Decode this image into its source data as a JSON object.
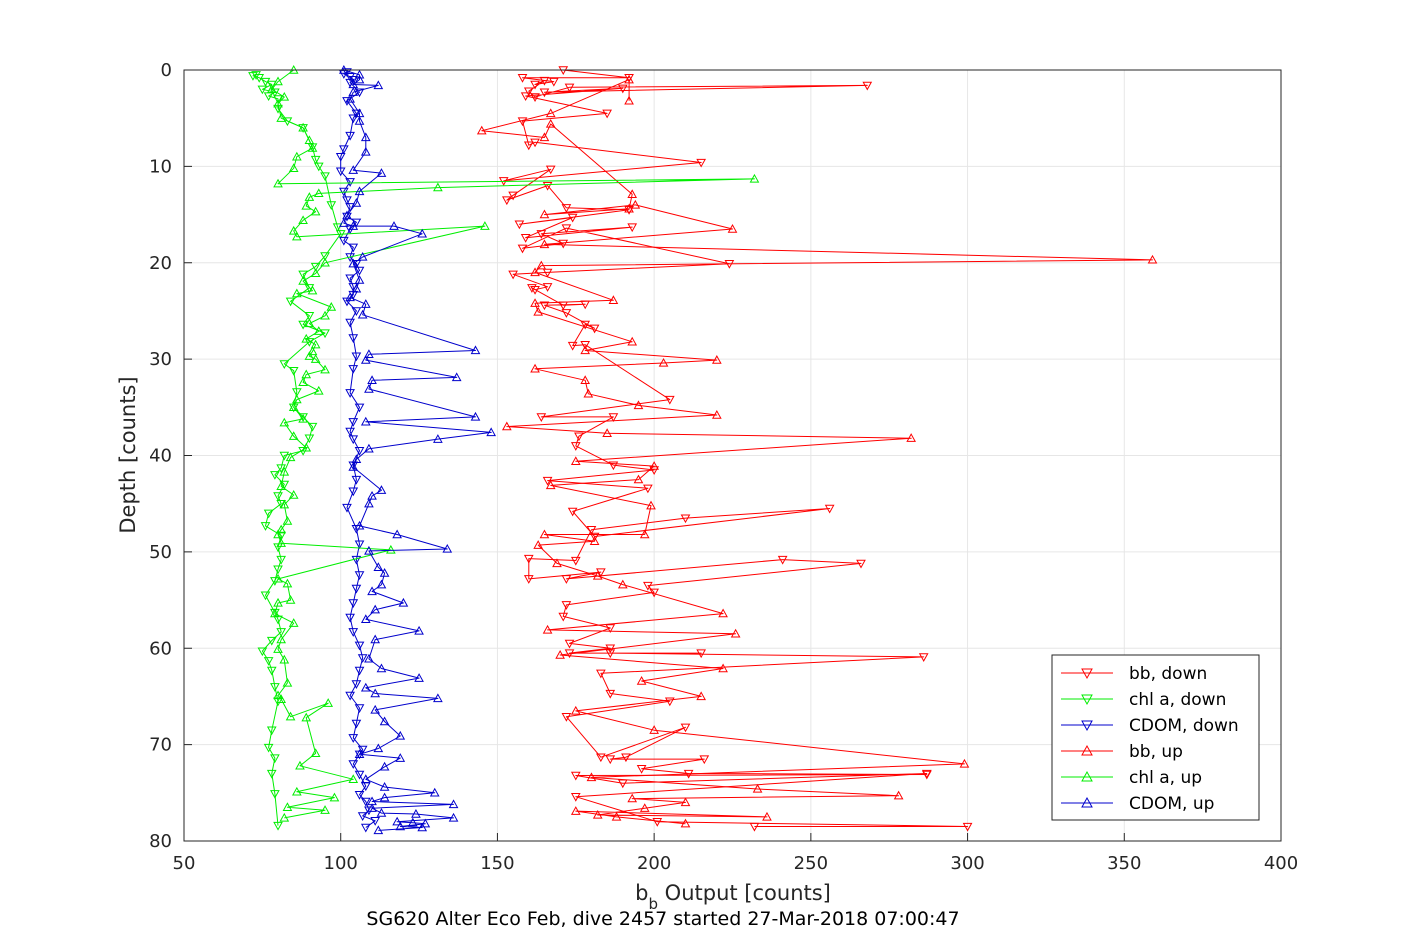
{
  "chart_data": {
    "type": "line",
    "caption": "SG620 Alter Eco Feb, dive 2457 started 27-Mar-2018 07:00:47",
    "xlabel_base": "b",
    "xlabel_sub": "b",
    "xlabel_rest": " Output [counts]",
    "ylabel": "Depth [counts]",
    "xlim": [
      50,
      400
    ],
    "ylim": [
      0,
      80
    ],
    "y_reversed": true,
    "grid": true,
    "legend_placement": "bottom-right",
    "x_ticks": [
      "50",
      "100",
      "150",
      "200",
      "250",
      "300",
      "350",
      "400"
    ],
    "y_ticks": [
      "0",
      "10",
      "20",
      "30",
      "40",
      "50",
      "60",
      "70",
      "80"
    ],
    "series": [
      {
        "name": "bb, down",
        "color": "#ff0000",
        "marker": "triangle-down",
        "x": [
          171,
          192,
          158,
          168,
          162,
          165,
          160,
          162,
          173,
          268,
          165,
          190,
          159,
          185,
          158,
          160,
          162,
          215,
          152,
          167,
          155,
          153,
          166,
          172,
          192,
          157,
          174,
          159,
          193,
          164,
          171,
          158,
          172,
          224,
          166,
          155,
          166,
          162,
          161,
          171,
          178,
          165,
          172,
          181,
          178,
          174,
          178,
          205,
          164,
          187,
          176,
          175,
          187,
          200,
          166,
          198,
          174,
          181,
          256,
          210,
          180,
          175,
          160,
          160,
          183,
          172,
          241,
          266,
          198,
          200,
          172,
          171,
          186,
          173,
          186,
          173,
          215,
          186,
          286,
          183,
          186,
          205,
          172,
          183,
          210,
          191,
          186,
          216,
          196,
          211,
          287,
          175,
          190,
          287,
          175,
          201,
          300,
          232
        ],
        "y": [
          0,
          0.8,
          0.8,
          1.2,
          1.5,
          1.1,
          2.2,
          2.8,
          1.8,
          1.6,
          2.3,
          1.9,
          2.7,
          4.5,
          5.3,
          7.8,
          7.5,
          9.6,
          11.5,
          10.3,
          13.0,
          13.5,
          12.0,
          14.3,
          14.5,
          16.0,
          15.3,
          17.4,
          16.3,
          17.0,
          18.0,
          18.5,
          16.4,
          20.1,
          21.0,
          21.2,
          22.5,
          22.8,
          22.6,
          24.4,
          24.3,
          24.4,
          25.2,
          26.8,
          26.4,
          28.6,
          28.5,
          34.2,
          36.0,
          36.0,
          38.0,
          39.0,
          41.0,
          41.5,
          42.6,
          43.4,
          45.8,
          48.4,
          45.5,
          46.5,
          47.7,
          50.9,
          50.7,
          52.8,
          52.1,
          52.8,
          50.8,
          51.2,
          53.5,
          54.2,
          55.5,
          56.7,
          57.9,
          59.5,
          60.0,
          60.5,
          60.5,
          60.5,
          60.9,
          62.6,
          64.7,
          65.5,
          67.1,
          71.3,
          68.2,
          71.3,
          71.5,
          71.5,
          72.5,
          73.0,
          73.1,
          73.2,
          74.0,
          73.0,
          75.4,
          78.0,
          78.5,
          78.5
        ]
      },
      {
        "name": "chl a, down",
        "color": "#00ee00",
        "marker": "triangle-down",
        "x": [
          73,
          72,
          74,
          76,
          78,
          75,
          79,
          77,
          80,
          80,
          83,
          88,
          91,
          92,
          93,
          95,
          97,
          99,
          100,
          95,
          92,
          88,
          90,
          84,
          90,
          88,
          95,
          90,
          82,
          85,
          86,
          85,
          88,
          91,
          90,
          88,
          82,
          81,
          79,
          82,
          80,
          81,
          77,
          76,
          81,
          80,
          81,
          80,
          79,
          76,
          79,
          80,
          81,
          78,
          75,
          77,
          78,
          79,
          80,
          78,
          77,
          79,
          78,
          79,
          80
        ],
        "y": [
          0.5,
          0.6,
          0.8,
          1.2,
          1.5,
          2.0,
          2.3,
          2.7,
          3.0,
          4.0,
          5.3,
          6.0,
          8.0,
          9.3,
          10.0,
          11.0,
          14.0,
          16.3,
          17.0,
          19.3,
          20.4,
          21.2,
          22.6,
          24.0,
          25.5,
          26.4,
          27.3,
          28.2,
          30.5,
          31.2,
          33.4,
          35.0,
          36.0,
          37.0,
          38.2,
          39.5,
          40.0,
          41.3,
          42.0,
          43.0,
          44.2,
          45.0,
          46.0,
          47.3,
          48.3,
          49.5,
          50.8,
          51.8,
          53.0,
          54.5,
          56.3,
          57.0,
          58.3,
          59.2,
          60.3,
          61.3,
          62.3,
          64.0,
          65.5,
          68.5,
          70.3,
          71.4,
          73.0,
          75.1,
          78.4
        ]
      },
      {
        "name": "CDOM, down",
        "color": "#0000cc",
        "marker": "triangle-down",
        "x": [
          102,
          101,
          103,
          104,
          103,
          106,
          102,
          105,
          104,
          103,
          101,
          100,
          100,
          103,
          101,
          102,
          103,
          102,
          105,
          103,
          101,
          104,
          103,
          105,
          106,
          103,
          104,
          104,
          102,
          105,
          103,
          104,
          105,
          104,
          103,
          106,
          104,
          103,
          104,
          106,
          104,
          105,
          104,
          102,
          105,
          106,
          105,
          106,
          105,
          104,
          103,
          104,
          106,
          107,
          106,
          105,
          103,
          106,
          105,
          104,
          107,
          106,
          104,
          106,
          108,
          106,
          108,
          109,
          107,
          111,
          108
        ],
        "y": [
          0.2,
          0.4,
          0.7,
          1.0,
          1.3,
          2.3,
          3.2,
          4.5,
          5.0,
          6.8,
          8.2,
          9.0,
          10.5,
          11.6,
          12.6,
          13.5,
          14.2,
          15.2,
          15.8,
          16.5,
          17.7,
          18.4,
          19.4,
          20.1,
          20.8,
          21.6,
          22.5,
          23.3,
          24.0,
          25.0,
          26.2,
          27.8,
          29.7,
          31.0,
          33.5,
          35.0,
          36.5,
          37.5,
          38.3,
          39.5,
          41.0,
          42.5,
          43.7,
          45.4,
          47.6,
          49.2,
          50.8,
          52.4,
          53.8,
          55.3,
          56.8,
          58.3,
          59.7,
          61.0,
          62.3,
          63.7,
          64.9,
          66.2,
          67.8,
          69.3,
          70.5,
          71.0,
          72.0,
          73.1,
          74.3,
          75.2,
          75.9,
          76.8,
          77.4,
          77.9,
          78.6
        ]
      },
      {
        "name": "bb, up",
        "color": "#ff0000",
        "marker": "triangle-up",
        "x": [
          192,
          192,
          167,
          145,
          165,
          167,
          193,
          192,
          165,
          194,
          225,
          165,
          359,
          164,
          162,
          187,
          162,
          163,
          193,
          178,
          220,
          203,
          162,
          178,
          179,
          195,
          220,
          153,
          185,
          282,
          175,
          200,
          195,
          167,
          199,
          197,
          165,
          181,
          163,
          169,
          182,
          190,
          222,
          166,
          226,
          170,
          222,
          196,
          215,
          175,
          200,
          299,
          180,
          233,
          278,
          193,
          210,
          197,
          182,
          236,
          175,
          188,
          210
        ],
        "y": [
          3.2,
          1.0,
          4.5,
          6.3,
          7.0,
          5.6,
          12.9,
          14.4,
          15.0,
          14.0,
          16.5,
          18.1,
          19.7,
          20.3,
          21.0,
          23.9,
          24.2,
          25.1,
          28.2,
          29.1,
          30.1,
          30.4,
          31.0,
          32.2,
          33.6,
          34.8,
          35.8,
          37.0,
          37.7,
          38.2,
          40.6,
          41.1,
          42.5,
          43.1,
          45.2,
          48.2,
          48.2,
          48.9,
          49.3,
          51.2,
          52.5,
          53.4,
          56.4,
          58.1,
          58.5,
          60.7,
          62.1,
          63.4,
          65.0,
          66.5,
          68.5,
          72.0,
          73.4,
          74.6,
          75.3,
          75.6,
          76.0,
          76.6,
          77.3,
          77.5,
          76.9,
          77.5,
          78.2
        ]
      },
      {
        "name": "chl a, up",
        "color": "#00ee00",
        "marker": "triangle-up",
        "x": [
          85,
          80,
          78,
          82,
          80,
          81,
          88,
          90,
          91,
          86,
          85,
          80,
          232,
          131,
          93,
          90,
          89,
          92,
          88,
          85,
          86,
          146,
          95,
          92,
          88,
          91,
          86,
          97,
          95,
          90,
          93,
          89,
          92,
          91,
          90,
          92,
          95,
          89,
          88,
          93,
          86,
          85,
          88,
          82,
          85,
          89,
          84,
          82,
          81,
          85,
          82,
          83,
          81,
          80,
          81,
          116,
          80,
          83,
          84,
          80,
          79,
          85,
          81,
          80,
          82,
          83,
          80,
          81,
          84,
          96,
          89,
          92,
          87,
          104,
          86,
          98,
          83,
          95,
          82
        ],
        "y": [
          0.0,
          1.2,
          2.0,
          2.8,
          3.5,
          5.0,
          6.0,
          7.3,
          8.1,
          9.0,
          10.2,
          11.8,
          11.3,
          12.2,
          12.8,
          13.2,
          14.1,
          14.7,
          15.6,
          16.7,
          17.3,
          16.2,
          20.0,
          21.1,
          21.9,
          22.9,
          23.2,
          24.6,
          25.5,
          26.3,
          27.1,
          27.9,
          28.5,
          29.2,
          29.7,
          30.0,
          31.1,
          31.6,
          32.4,
          33.3,
          34.2,
          35.0,
          36.2,
          36.6,
          38.0,
          39.2,
          40.2,
          41.7,
          43.2,
          44.1,
          45.1,
          46.8,
          47.7,
          48.2,
          49.1,
          49.8,
          52.8,
          53.3,
          55.0,
          55.3,
          56.4,
          57.4,
          59.1,
          60.1,
          61.2,
          63.6,
          64.9,
          65.3,
          67.1,
          65.7,
          67.2,
          70.9,
          72.2,
          73.6,
          74.9,
          75.5,
          76.5,
          76.8,
          77.6
        ]
      },
      {
        "name": "CDOM, up",
        "color": "#0000cc",
        "marker": "triangle-up",
        "x": [
          101,
          106,
          106,
          104,
          112,
          104,
          103,
          106,
          106,
          108,
          108,
          104,
          113,
          106,
          105,
          102,
          101,
          104,
          117,
          126,
          107,
          104,
          106,
          105,
          103,
          108,
          107,
          143,
          109,
          108,
          137,
          110,
          109,
          143,
          108,
          148,
          131,
          109,
          105,
          104,
          113,
          110,
          109,
          106,
          118,
          134,
          109,
          112,
          114,
          113,
          110,
          120,
          111,
          108,
          125,
          111,
          109,
          113,
          125,
          108,
          111,
          131,
          111,
          114,
          119,
          112,
          106,
          119,
          114,
          108,
          114,
          130,
          114,
          110,
          136,
          110,
          113,
          124,
          136,
          118,
          123,
          127,
          119,
          126,
          112
        ],
        "y": [
          0.0,
          0.5,
          1.0,
          1.5,
          1.6,
          2.3,
          3.0,
          4.5,
          5.3,
          7.0,
          8.5,
          10.4,
          10.7,
          12.6,
          13.8,
          15.1,
          15.9,
          16.2,
          16.2,
          17.0,
          19.4,
          20.1,
          21.8,
          22.7,
          23.6,
          24.3,
          25.4,
          29.1,
          29.5,
          30.1,
          31.9,
          32.2,
          33.1,
          36.0,
          36.5,
          37.6,
          38.3,
          39.3,
          40.4,
          41.2,
          43.6,
          44.2,
          45.0,
          47.3,
          48.2,
          49.7,
          49.9,
          51.6,
          52.2,
          53.4,
          54.1,
          55.3,
          56.0,
          57.0,
          58.2,
          59.1,
          61.1,
          62.1,
          63.1,
          64.1,
          64.7,
          65.2,
          66.4,
          67.6,
          69.1,
          70.4,
          71.0,
          71.4,
          72.3,
          73.6,
          74.4,
          75.0,
          75.5,
          75.9,
          76.2,
          76.6,
          77.1,
          77.2,
          77.6,
          78.0,
          78.1,
          78.2,
          78.5,
          78.6,
          78.9
        ]
      }
    ]
  }
}
